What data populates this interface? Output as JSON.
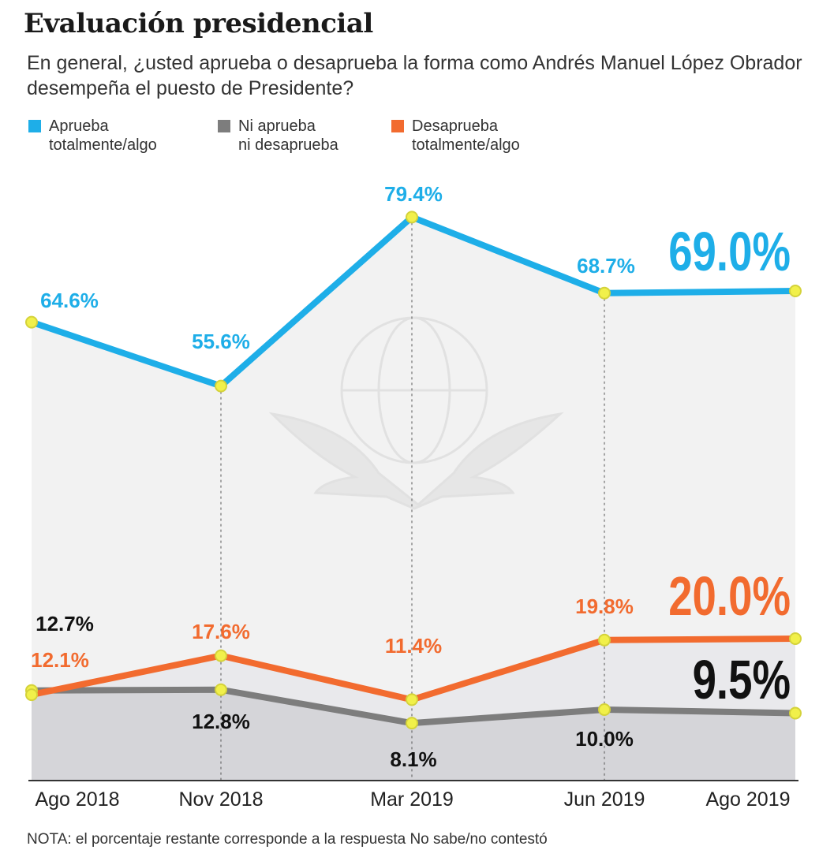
{
  "title": "Evaluación presidencial",
  "subtitle": "En general, ¿usted aprueba o desaprueba la forma como Andrés Manuel López Obrador desempeña el puesto de Presidente?",
  "note": "NOTA: el porcentaje restante corresponde a la respuesta No sabe/no contestó",
  "colors": {
    "aprueba": "#1eaee8",
    "ni": "#7d7d7d",
    "desaprueba": "#f26b2f",
    "marker": "#f1f04a",
    "gridline": "#555555"
  },
  "legend": [
    {
      "label": "Aprueba\ntotalmente/algo",
      "color": "#1eaee8"
    },
    {
      "label": "Ni aprueba\nni desaprueba",
      "color": "#7d7d7d"
    },
    {
      "label": "Desaprueba\ntotalmente/algo",
      "color": "#f26b2f"
    }
  ],
  "chart_data": {
    "type": "line",
    "categories": [
      "Ago 2018",
      "Nov 2018",
      "Mar 2019",
      "Jun 2019",
      "Ago 2019"
    ],
    "series": [
      {
        "key": "aprueba",
        "name": "Aprueba totalmente/algo",
        "values": [
          64.6,
          55.6,
          79.4,
          68.7,
          69.0
        ],
        "labels": [
          "64.6%",
          "55.6%",
          "79.4%",
          "68.7%",
          "69.0%"
        ]
      },
      {
        "key": "ni",
        "name": "Ni aprueba ni desaprueba",
        "values": [
          12.7,
          12.8,
          8.1,
          10.0,
          9.5
        ],
        "labels": [
          "12.7%",
          "12.8%",
          "8.1%",
          "10.0%",
          "9.5%"
        ]
      },
      {
        "key": "desaprueba",
        "name": "Desaprueba totalmente/algo",
        "values": [
          12.1,
          17.6,
          11.4,
          19.8,
          20.0
        ],
        "labels": [
          "12.1%",
          "17.6%",
          "11.4%",
          "19.8%",
          "20.0%"
        ]
      }
    ],
    "ylim": [
      0,
      85
    ],
    "grid": "dashed vertical lines at intermediate dates",
    "legend_position": "top-left"
  }
}
